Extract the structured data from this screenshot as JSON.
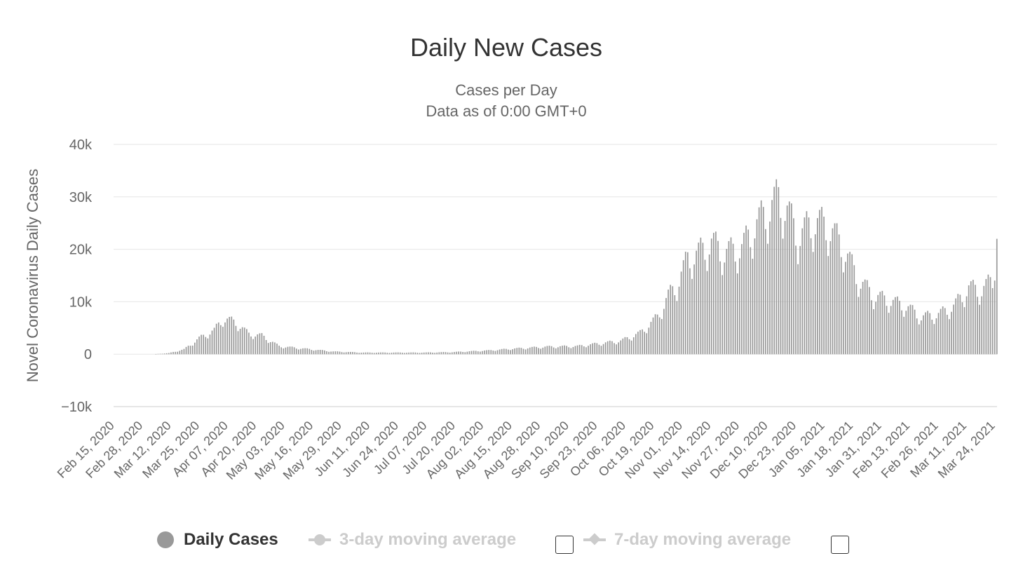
{
  "chart_data": {
    "type": "bar",
    "title": "Daily New Cases",
    "subtitle_lines": [
      "Cases per Day",
      "Data as of 0:00 GMT+0"
    ],
    "ylabel": "Novel Coronavirus Daily Cases",
    "xlabel": "",
    "ylim": [
      -10000,
      40000
    ],
    "yticks": [
      {
        "value": 40000,
        "label": "40k"
      },
      {
        "value": 30000,
        "label": "30k"
      },
      {
        "value": 20000,
        "label": "20k"
      },
      {
        "value": 10000,
        "label": "10k"
      },
      {
        "value": 0,
        "label": "0"
      },
      {
        "value": -10000,
        "label": "−10k"
      }
    ],
    "grid": true,
    "x_start": "2020-02-15",
    "x_end": "2021-03-28",
    "xtick_labels": [
      "Feb 15, 2020",
      "Feb 28, 2020",
      "Mar 12, 2020",
      "Mar 25, 2020",
      "Apr 07, 2020",
      "Apr 20, 2020",
      "May 03, 2020",
      "May 16, 2020",
      "May 29, 2020",
      "Jun 11, 2020",
      "Jun 24, 2020",
      "Jul 07, 2020",
      "Jul 20, 2020",
      "Aug 02, 2020",
      "Aug 15, 2020",
      "Aug 28, 2020",
      "Sep 10, 2020",
      "Sep 23, 2020",
      "Oct 06, 2020",
      "Oct 19, 2020",
      "Nov 01, 2020",
      "Nov 14, 2020",
      "Nov 27, 2020",
      "Dec 10, 2020",
      "Dec 23, 2020",
      "Jan 05, 2021",
      "Jan 18, 2021",
      "Jan 31, 2021",
      "Feb 13, 2021",
      "Feb 26, 2021",
      "Mar 11, 2021",
      "Mar 24, 2021"
    ],
    "series": [
      {
        "name": "Daily Cases",
        "color": "#999999",
        "keyframes": [
          [
            "2020-02-15",
            0
          ],
          [
            "2020-03-03",
            0
          ],
          [
            "2020-03-10",
            200
          ],
          [
            "2020-03-17",
            900
          ],
          [
            "2020-03-24",
            3000
          ],
          [
            "2020-03-31",
            4500
          ],
          [
            "2020-04-04",
            6700
          ],
          [
            "2020-04-10",
            6000
          ],
          [
            "2020-04-16",
            3800
          ],
          [
            "2020-04-22",
            3500
          ],
          [
            "2020-04-30",
            1500
          ],
          [
            "2020-05-10",
            1100
          ],
          [
            "2020-05-25",
            500
          ],
          [
            "2020-06-08",
            300
          ],
          [
            "2020-06-22",
            300
          ],
          [
            "2020-07-06",
            300
          ],
          [
            "2020-07-20",
            400
          ],
          [
            "2020-08-05",
            700
          ],
          [
            "2020-08-15",
            1000
          ],
          [
            "2020-09-01",
            1400
          ],
          [
            "2020-09-15",
            1500
          ],
          [
            "2020-09-25",
            2000
          ],
          [
            "2020-10-05",
            2500
          ],
          [
            "2020-10-14",
            4000
          ],
          [
            "2020-10-22",
            7000
          ],
          [
            "2020-10-27",
            11000
          ],
          [
            "2020-10-31",
            13000
          ],
          [
            "2020-11-05",
            18000
          ],
          [
            "2020-11-10",
            19000
          ],
          [
            "2020-11-16",
            21000
          ],
          [
            "2020-11-22",
            19000
          ],
          [
            "2020-11-30",
            20000
          ],
          [
            "2020-12-06",
            24000
          ],
          [
            "2020-12-12",
            27000
          ],
          [
            "2020-12-17",
            29500
          ],
          [
            "2020-12-21",
            27000
          ],
          [
            "2020-12-26",
            22000
          ],
          [
            "2021-01-02",
            25000
          ],
          [
            "2021-01-09",
            24000
          ],
          [
            "2021-01-16",
            20000
          ],
          [
            "2021-01-23",
            14000
          ],
          [
            "2021-01-30",
            11000
          ],
          [
            "2021-02-07",
            10000
          ],
          [
            "2021-02-14",
            9000
          ],
          [
            "2021-02-21",
            7000
          ],
          [
            "2021-03-01",
            7500
          ],
          [
            "2021-03-08",
            9000
          ],
          [
            "2021-03-15",
            12500
          ],
          [
            "2021-03-21",
            12000
          ],
          [
            "2021-03-26",
            14000
          ],
          [
            "2021-03-28",
            22000
          ]
        ]
      }
    ],
    "legend": [
      {
        "label": "Daily Cases",
        "active": true
      },
      {
        "label": "3-day moving average",
        "active": false
      },
      {
        "label": "7-day moving average",
        "active": false
      }
    ]
  }
}
